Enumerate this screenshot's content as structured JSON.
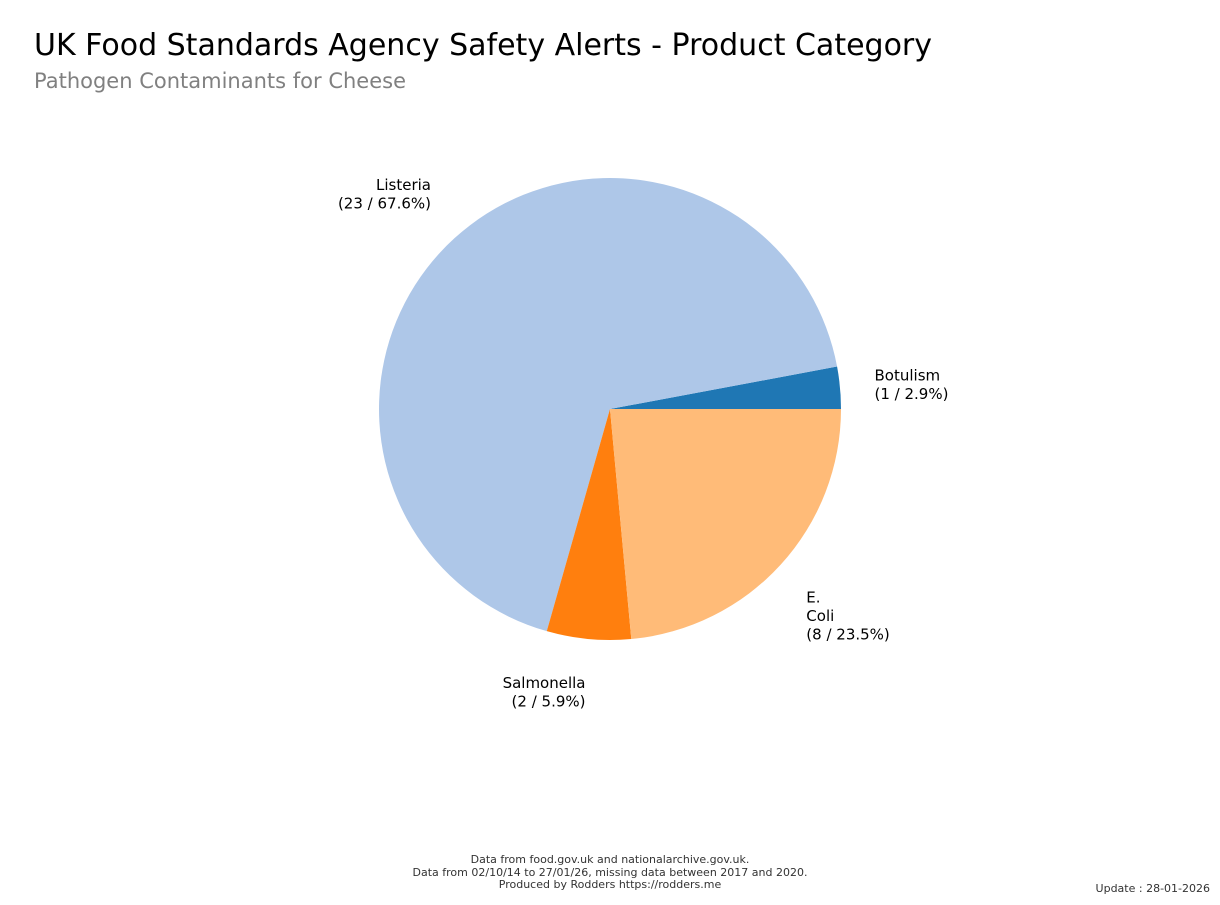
{
  "header": {
    "title": "UK Food Standards Agency Safety Alerts - Product Category",
    "subtitle": "Pathogen Contaminants for Cheese"
  },
  "chart_data": {
    "type": "pie",
    "start_angle_deg": 0,
    "direction": "counterclockwise",
    "slices": [
      {
        "key": "botulism",
        "label_lines": [
          "Botulism",
          "(1 / 2.9%)"
        ],
        "value": 1,
        "percent": 2.9,
        "color": "#1f77b4"
      },
      {
        "key": "listeria",
        "label_lines": [
          "Listeria",
          "(23 / 67.6%)"
        ],
        "value": 23,
        "percent": 67.6,
        "color": "#aec7e8"
      },
      {
        "key": "salmonella",
        "label_lines": [
          "Salmonella",
          "(2 / 5.9%)"
        ],
        "value": 2,
        "percent": 5.9,
        "color": "#ff7f0e"
      },
      {
        "key": "e-coli",
        "label_lines": [
          "E.",
          "Coli",
          "(8 / 23.5%)"
        ],
        "value": 8,
        "percent": 23.5,
        "color": "#ffbb78"
      }
    ]
  },
  "footer": {
    "lines": [
      "Data from food.gov.uk and nationalarchive.gov.uk.",
      "Data from 02/10/14 to 27/01/26, missing data between 2017 and 2020.",
      "Produced by Rodders https://rodders.me"
    ],
    "update": "Update : 28-01-2026"
  }
}
